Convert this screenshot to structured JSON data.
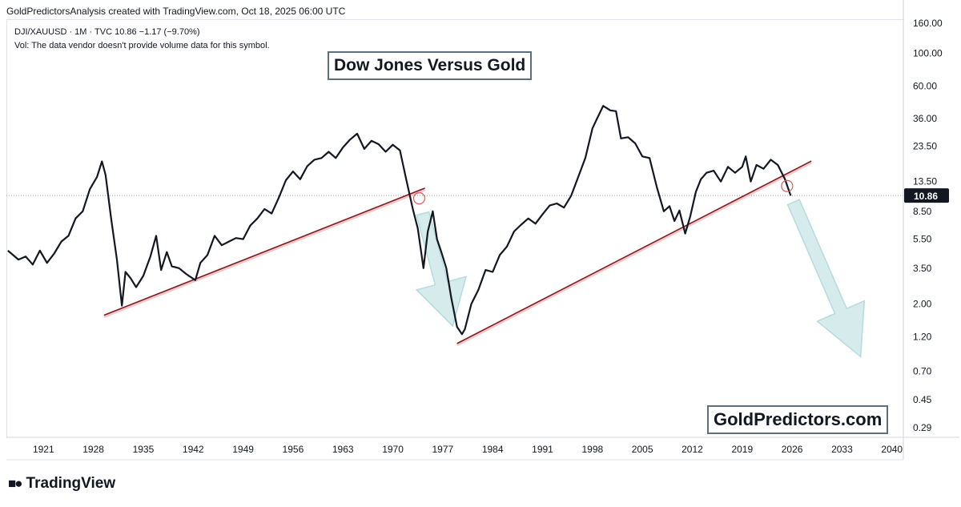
{
  "header": {
    "credit": "GoldPredictorsAnalysis created with TradingView.com, Oct 18, 2025 06:00 UTC"
  },
  "legend": {
    "symbol_line": "DJI/XAUUSD · 1M · TVC  10.86  −1.17 (−9.70%)",
    "volume_note": "Vol: The data vendor doesn't provide volume data for this symbol."
  },
  "footer": {
    "brand": "TradingView"
  },
  "colors": {
    "series": "#131722",
    "trendline": "#7a1f22",
    "trendline_glow": "#f5c6c8",
    "arrow_fill": "#cfe9e9",
    "arrow_stroke": "#a8d6d6",
    "price_label_bg": "#131722",
    "price_label_text": "#ffffff",
    "marker": "#e05a5a",
    "grid_dotted": "#9598a1"
  },
  "chart_data": {
    "type": "line",
    "title": "Dow Jones Versus Gold",
    "watermark": "GoldPredictors.com",
    "xlabel": "",
    "ylabel": "",
    "y_scale": "log",
    "xlim": [
      1915.8,
      2041.6
    ],
    "ylim": [
      0.25,
      170
    ],
    "x_ticks": [
      "1921",
      "1928",
      "1935",
      "1942",
      "1949",
      "1956",
      "1963",
      "1970",
      "1977",
      "1984",
      "1991",
      "1998",
      "2005",
      "2012",
      "2019",
      "2026",
      "2033",
      "2040"
    ],
    "y_ticks": [
      "160.00",
      "100.00",
      "60.00",
      "36.00",
      "23.50",
      "13.50",
      "8.50",
      "5.50",
      "3.50",
      "2.00",
      "1.20",
      "0.70",
      "0.45",
      "0.29"
    ],
    "last_price": {
      "value": 10.86,
      "label": "10.86"
    },
    "series": [
      {
        "name": "DJI/XAUUSD",
        "x": [
          1916.0,
          1917.5,
          1918.5,
          1919.5,
          1920.5,
          1921.5,
          1922.5,
          1923.5,
          1924.5,
          1925.5,
          1926.5,
          1927.5,
          1928.5,
          1929.2,
          1929.7,
          1930.5,
          1931.3,
          1932.0,
          1932.5,
          1933.2,
          1934.0,
          1935.0,
          1936.0,
          1936.8,
          1937.5,
          1938.3,
          1939.0,
          1940.0,
          1941.0,
          1942.3,
          1943.0,
          1944.0,
          1945.0,
          1946.0,
          1947.0,
          1948.0,
          1949.0,
          1950.0,
          1951.0,
          1952.0,
          1953.0,
          1954.0,
          1955.0,
          1956.0,
          1957.0,
          1958.0,
          1959.0,
          1960.0,
          1961.0,
          1962.0,
          1963.0,
          1964.0,
          1965.0,
          1966.0,
          1967.0,
          1968.0,
          1969.0,
          1970.0,
          1971.0,
          1971.8,
          1972.8,
          1973.5,
          1974.3,
          1974.9,
          1975.6,
          1976.2,
          1976.8,
          1977.5,
          1978.2,
          1979.0,
          1979.7,
          1980.1,
          1981.0,
          1982.0,
          1983.0,
          1984.0,
          1985.0,
          1986.0,
          1987.0,
          1988.0,
          1989.0,
          1990.0,
          1991.0,
          1992.0,
          1993.0,
          1994.0,
          1995.0,
          1996.0,
          1997.0,
          1998.0,
          1998.8,
          1999.5,
          2000.5,
          2001.3,
          2002.0,
          2003.0,
          2004.0,
          2005.0,
          2006.0,
          2007.0,
          2008.0,
          2008.8,
          2009.5,
          2010.2,
          2011.0,
          2011.7,
          2012.5,
          2013.2,
          2014.0,
          2015.0,
          2016.0,
          2017.0,
          2018.0,
          2019.0,
          2019.5,
          2020.2,
          2021.0,
          2022.0,
          2023.0,
          2024.0,
          2025.0,
          2025.8
        ],
        "values": [
          4.6,
          4.0,
          4.2,
          3.7,
          4.6,
          3.8,
          4.4,
          5.3,
          5.8,
          7.6,
          8.5,
          12.0,
          14.5,
          18.5,
          15.0,
          7.5,
          4.0,
          1.95,
          3.3,
          3.0,
          2.6,
          3.1,
          4.2,
          5.8,
          3.4,
          4.5,
          3.6,
          3.5,
          3.2,
          2.9,
          3.8,
          4.3,
          5.8,
          5.0,
          5.3,
          5.6,
          5.5,
          6.8,
          7.6,
          8.8,
          8.2,
          10.5,
          13.8,
          15.8,
          14.0,
          17.2,
          19.0,
          19.5,
          21.5,
          19.5,
          23.0,
          26.0,
          28.5,
          22.5,
          25.5,
          24.2,
          21.5,
          24.0,
          22.0,
          14.5,
          8.8,
          6.5,
          3.5,
          6.2,
          8.5,
          5.5,
          4.5,
          3.5,
          2.2,
          1.4,
          1.25,
          1.35,
          2.0,
          2.5,
          3.4,
          3.3,
          4.3,
          4.9,
          6.2,
          6.9,
          7.6,
          7.0,
          8.1,
          9.3,
          9.6,
          9.0,
          10.8,
          14.5,
          19.5,
          31.0,
          37.5,
          44.0,
          41.0,
          40.5,
          26.5,
          27.0,
          24.5,
          20.0,
          19.5,
          12.5,
          8.5,
          9.2,
          7.3,
          8.6,
          6.0,
          7.8,
          11.5,
          14.0,
          15.5,
          16.0,
          13.5,
          17.0,
          15.5,
          17.0,
          20.0,
          13.5,
          17.5,
          16.5,
          19.0,
          17.5,
          14.0,
          10.86
        ]
      }
    ],
    "trendlines": [
      {
        "name": "support-line-1",
        "x": [
          1929.5,
          1974.5
        ],
        "values": [
          1.68,
          12.2
        ]
      },
      {
        "name": "support-line-2",
        "x": [
          1979.0,
          2028.7
        ],
        "values": [
          1.08,
          18.6
        ]
      }
    ],
    "annotations": [
      {
        "type": "circle",
        "name": "breakdown-marker-1974",
        "x": 1973.7,
        "y": 10.4
      },
      {
        "type": "circle",
        "name": "breakdown-marker-2025",
        "x": 2025.3,
        "y": 12.6
      },
      {
        "type": "arrow",
        "name": "projection-arrow-1",
        "from": {
          "x": 1974.2,
          "y": 8.2
        },
        "to": {
          "x": 1978.4,
          "y": 1.42
        }
      },
      {
        "type": "arrow",
        "name": "projection-arrow-2",
        "from": {
          "x": 2026.2,
          "y": 9.8
        },
        "to": {
          "x": 2035.6,
          "y": 0.88
        }
      }
    ]
  }
}
